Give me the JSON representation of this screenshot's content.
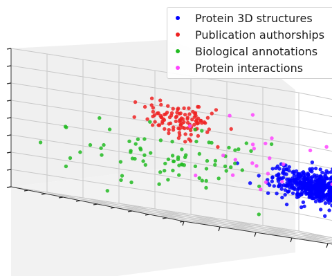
{
  "chart_data": {
    "type": "scatter",
    "projection": "3d",
    "title": "",
    "grid": true,
    "legend_position": "top-right",
    "tick_labels": "hidden",
    "series": [
      {
        "name": "Protein 3D structures",
        "color": "#0000ff",
        "cluster": {
          "center": [
            5.2,
            7.0,
            3.0
          ],
          "spread": [
            0.55,
            0.55,
            0.45
          ],
          "count": 600
        }
      },
      {
        "name": "Publication authorships",
        "color": "#ee2222",
        "cluster": {
          "center": [
            1.9,
            5.9,
            5.6
          ],
          "spread": [
            0.45,
            0.35,
            0.45
          ],
          "count": 110
        }
      },
      {
        "name": "Biological annotations",
        "color": "#22bb22",
        "cluster": {
          "center": [
            2.2,
            4.4,
            3.4
          ],
          "spread": [
            1.3,
            0.9,
            0.9
          ],
          "count": 85
        }
      },
      {
        "name": "Protein interactions",
        "color": "#ff44ff",
        "cluster": {
          "center": [
            4.0,
            5.6,
            4.0
          ],
          "spread": [
            0.9,
            0.6,
            1.0
          ],
          "count": 22
        }
      }
    ],
    "xlim": [
      0,
      8
    ],
    "ylim": [
      0,
      10
    ],
    "zlim": [
      0,
      8
    ]
  }
}
